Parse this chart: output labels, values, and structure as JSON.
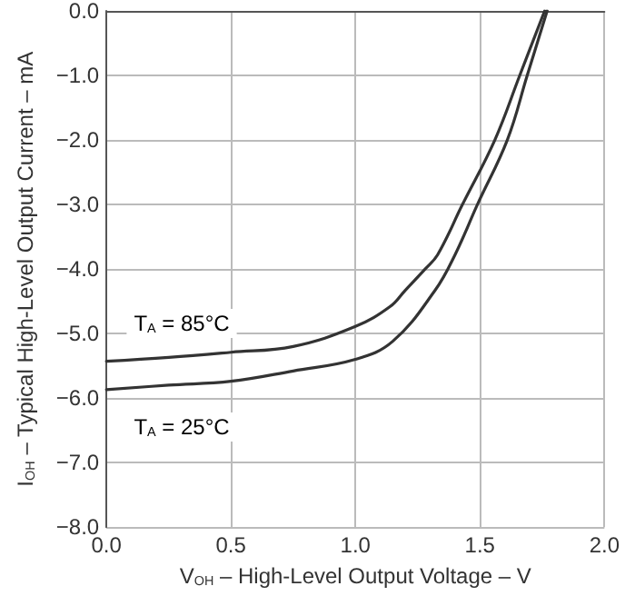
{
  "chart_data": {
    "type": "line",
    "xlabel": "V$_{OH}$ – High-Level Output Voltage – V",
    "ylabel": "I$_{OH}$ – Typical High-Level Output Current – mA",
    "xlim": [
      0,
      2
    ],
    "ylim": [
      -8,
      0
    ],
    "xticks": [
      {
        "value": 0,
        "label": "0.0"
      },
      {
        "value": 0.5,
        "label": "0.5"
      },
      {
        "value": 1,
        "label": "1.0"
      },
      {
        "value": 1.5,
        "label": "1.5"
      },
      {
        "value": 2,
        "label": "2.0"
      }
    ],
    "yticks": [
      {
        "value": 0,
        "label": "0.0"
      },
      {
        "value": -1,
        "label": "−1.0"
      },
      {
        "value": -2,
        "label": "−2.0"
      },
      {
        "value": -3,
        "label": "−3.0"
      },
      {
        "value": -4,
        "label": "−4.0"
      },
      {
        "value": -5,
        "label": "−5.0"
      },
      {
        "value": -6,
        "label": "−6.0"
      },
      {
        "value": -7,
        "label": "−7.0"
      },
      {
        "value": -8,
        "label": "−8.0"
      }
    ],
    "grid": true,
    "marker": "none",
    "line_style": "solid",
    "series": [
      {
        "color": "#333333",
        "x": [
          0,
          0.25,
          0.5,
          0.75,
          1.0,
          1.14,
          1.2,
          1.28,
          1.33,
          1.43,
          1.56,
          1.66,
          1.76
        ],
        "values": [
          -5.43,
          -5.37,
          -5.29,
          -5.2,
          -4.89,
          -4.58,
          -4.33,
          -4.0,
          -3.78,
          -3.0,
          -2.0,
          -1.0,
          0
        ]
      },
      {
        "color": "#333333",
        "x": [
          0,
          0.25,
          0.5,
          0.75,
          1.0,
          1.15,
          1.32,
          1.4,
          1.49,
          1.61,
          1.69,
          1.77
        ],
        "values": [
          -5.87,
          -5.8,
          -5.74,
          -5.58,
          -5.4,
          -5.12,
          -4.33,
          -3.78,
          -3.0,
          -2.0,
          -1.0,
          0
        ]
      }
    ],
    "annotations": [
      "T$_{A}$ = 85°C",
      "T$_{A}$ = 25°C"
    ]
  }
}
